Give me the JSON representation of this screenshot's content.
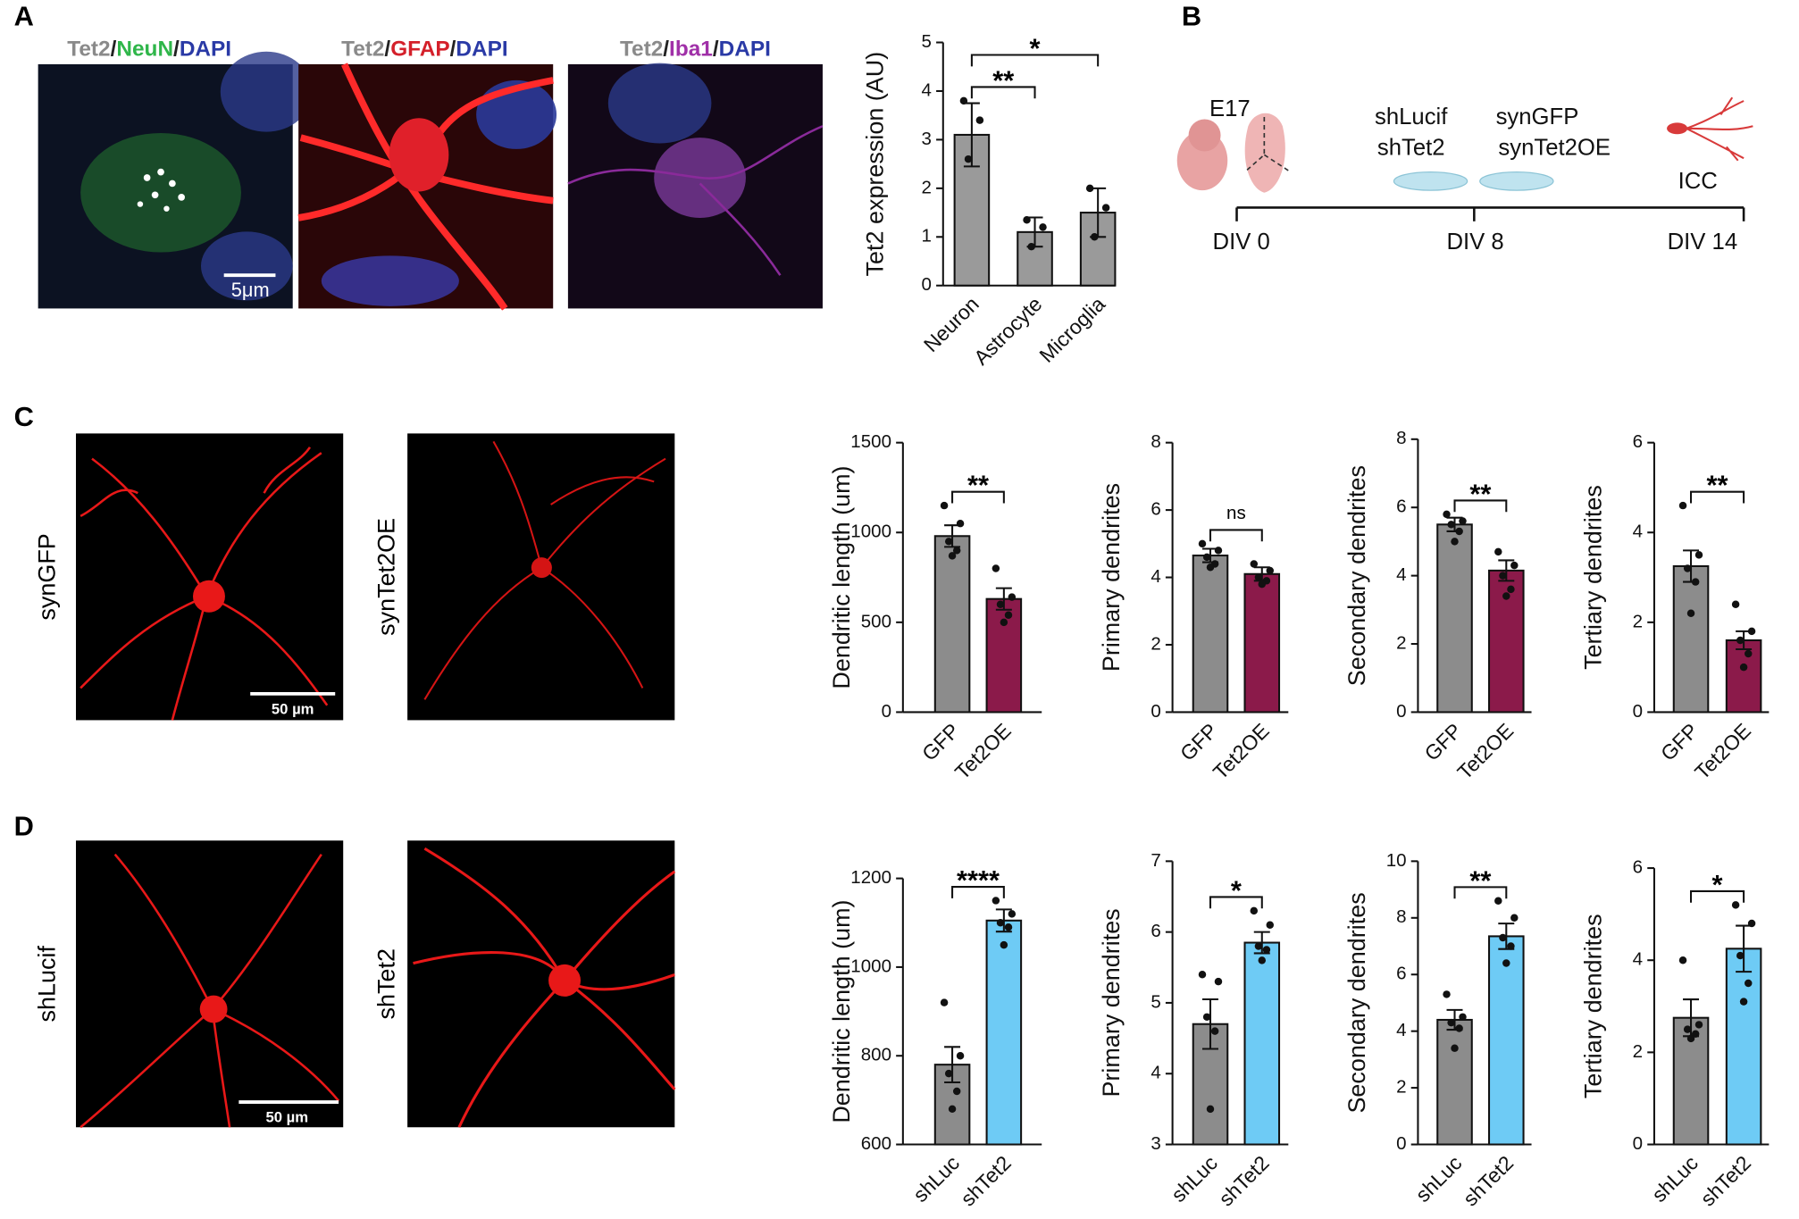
{
  "panels": [
    "A",
    "B",
    "C",
    "D"
  ],
  "separator": "/",
  "images": [
    {
      "stains": [
        "Tet2",
        "NeuN",
        "DAPI"
      ],
      "scale_bar": "5μm"
    },
    {
      "stains": [
        "Tet2",
        "GFAP",
        "DAPI"
      ]
    },
    {
      "stains": [
        "Tet2",
        "Iba1",
        "DAPI"
      ]
    },
    {
      "sample": "synGFP",
      "scale_bar": "50 µm"
    },
    {
      "sample": "synTet2OE"
    },
    {
      "sample": "shLucif",
      "scale_bar": "50 µm"
    },
    {
      "sample": "shTet2"
    }
  ],
  "diagram": {
    "stage": "E17",
    "knockdown": [
      "shLucif",
      "shTet2"
    ],
    "overexpression": [
      "synGFP",
      "synTet2OE"
    ],
    "readout": "ICC",
    "timepoints": [
      "DIV 0",
      "DIV 8",
      "DIV 14"
    ]
  },
  "chart_data": [
    {
      "type": "bar",
      "ylabel": "Tet2 expression (AU)",
      "categories": [
        "Neuron",
        "Astrocyte",
        "Microglia"
      ],
      "values": [
        3.1,
        1.1,
        1.5
      ],
      "errors": [
        0.65,
        0.3,
        0.5
      ],
      "points": [
        [
          3.8,
          3.4,
          2.6
        ],
        [
          1.35,
          1.2,
          0.8
        ],
        [
          2.0,
          1.6,
          1.0
        ]
      ],
      "colors": [
        "#9a9a9a",
        "#9a9a9a",
        "#9a9a9a"
      ],
      "ylim": [
        0,
        5
      ],
      "yticks": [
        0,
        1,
        2,
        3,
        4,
        5
      ],
      "annotations": [
        {
          "label": "**",
          "categories": [
            "Neuron",
            "Astrocyte"
          ]
        },
        {
          "label": "*",
          "categories": [
            "Neuron",
            "Microglia"
          ]
        }
      ]
    },
    {
      "type": "bar",
      "ylabel": "Dendritic length (um)",
      "categories": [
        "GFP",
        "Tet2OE"
      ],
      "values": [
        980,
        630
      ],
      "errors": [
        60,
        60
      ],
      "points": [
        [
          1150,
          1050,
          950,
          900,
          870
        ],
        [
          800,
          640,
          600,
          540,
          500
        ]
      ],
      "colors": [
        "#8c8c8c",
        "#8b1a4a"
      ],
      "ylim": [
        0,
        1500
      ],
      "yticks": [
        0,
        500,
        1000,
        1500
      ],
      "annotations": [
        {
          "label": "**",
          "categories": [
            "GFP",
            "Tet2OE"
          ]
        }
      ]
    },
    {
      "type": "bar",
      "ylabel": "Primary dendrites",
      "categories": [
        "GFP",
        "Tet2OE"
      ],
      "values": [
        4.65,
        4.1
      ],
      "errors": [
        0.2,
        0.2
      ],
      "points": [
        [
          5.0,
          4.8,
          4.6,
          4.4,
          4.3
        ],
        [
          4.4,
          4.2,
          4.0,
          3.9,
          3.8
        ]
      ],
      "colors": [
        "#8c8c8c",
        "#8b1a4a"
      ],
      "ylim": [
        0,
        8
      ],
      "yticks": [
        0,
        2,
        4,
        6,
        8
      ],
      "annotations": [
        {
          "label": "ns",
          "categories": [
            "GFP",
            "Tet2OE"
          ]
        }
      ]
    },
    {
      "type": "bar",
      "ylabel": "Secondary dendrites",
      "categories": [
        "GFP",
        "Tet2OE"
      ],
      "values": [
        5.5,
        4.15
      ],
      "errors": [
        0.2,
        0.3
      ],
      "points": [
        [
          5.8,
          5.6,
          5.5,
          5.3,
          5.0
        ],
        [
          4.7,
          4.3,
          4.0,
          3.6,
          3.4
        ]
      ],
      "colors": [
        "#8c8c8c",
        "#8b1a4a"
      ],
      "ylim": [
        0,
        8
      ],
      "yticks": [
        0,
        2,
        4,
        6,
        8
      ],
      "annotations": [
        {
          "label": "**",
          "categories": [
            "GFP",
            "Tet2OE"
          ]
        }
      ]
    },
    {
      "type": "bar",
      "ylabel": "Tertiary dendrites",
      "categories": [
        "GFP",
        "Tet2OE"
      ],
      "values": [
        3.25,
        1.6
      ],
      "errors": [
        0.35,
        0.2
      ],
      "points": [
        [
          4.6,
          3.5,
          3.2,
          2.9,
          2.2
        ],
        [
          2.4,
          1.8,
          1.6,
          1.3,
          1.0
        ]
      ],
      "colors": [
        "#8c8c8c",
        "#8b1a4a"
      ],
      "ylim": [
        0,
        6
      ],
      "yticks": [
        0,
        2,
        4,
        6
      ],
      "annotations": [
        {
          "label": "**",
          "categories": [
            "GFP",
            "Tet2OE"
          ]
        }
      ]
    },
    {
      "type": "bar",
      "ylabel": "Dendritic length (um)",
      "categories": [
        "shLuc",
        "shTet2"
      ],
      "values": [
        780,
        1105
      ],
      "errors": [
        40,
        25
      ],
      "points": [
        [
          920,
          800,
          760,
          720,
          680
        ],
        [
          1150,
          1120,
          1100,
          1090,
          1050
        ]
      ],
      "colors": [
        "#8c8c8c",
        "#6ecbf5"
      ],
      "ylim": [
        600,
        1200
      ],
      "yticks": [
        600,
        800,
        1000,
        1200
      ],
      "annotations": [
        {
          "label": "****",
          "categories": [
            "shLuc",
            "shTet2"
          ]
        }
      ]
    },
    {
      "type": "bar",
      "ylabel": "Primary dendrites",
      "categories": [
        "shLuc",
        "shTet2"
      ],
      "values": [
        4.7,
        5.85
      ],
      "errors": [
        0.35,
        0.15
      ],
      "points": [
        [
          5.4,
          5.3,
          4.8,
          4.6,
          3.5
        ],
        [
          6.3,
          6.1,
          5.8,
          5.75,
          5.6
        ]
      ],
      "colors": [
        "#8c8c8c",
        "#6ecbf5"
      ],
      "ylim": [
        3,
        7
      ],
      "yticks": [
        3,
        4,
        5,
        6,
        7
      ],
      "annotations": [
        {
          "label": "*",
          "categories": [
            "shLuc",
            "shTet2"
          ]
        }
      ]
    },
    {
      "type": "bar",
      "ylabel": "Secondary dendrites",
      "categories": [
        "shLuc",
        "shTet2"
      ],
      "values": [
        4.4,
        7.35
      ],
      "errors": [
        0.35,
        0.45
      ],
      "points": [
        [
          5.3,
          4.5,
          4.3,
          4.1,
          3.4
        ],
        [
          8.6,
          8.0,
          7.3,
          7.0,
          6.4
        ]
      ],
      "colors": [
        "#8c8c8c",
        "#6ecbf5"
      ],
      "ylim": [
        0,
        10
      ],
      "yticks": [
        0,
        2,
        4,
        6,
        8,
        10
      ],
      "annotations": [
        {
          "label": "**",
          "categories": [
            "shLuc",
            "shTet2"
          ]
        }
      ]
    },
    {
      "type": "bar",
      "ylabel": "Tertiary dendrites",
      "categories": [
        "shLuc",
        "shTet2"
      ],
      "values": [
        2.75,
        4.25
      ],
      "errors": [
        0.4,
        0.5
      ],
      "points": [
        [
          4.0,
          2.6,
          2.5,
          2.4,
          2.3
        ],
        [
          5.2,
          4.8,
          4.1,
          3.5,
          3.1
        ]
      ],
      "colors": [
        "#8c8c8c",
        "#6ecbf5"
      ],
      "ylim": [
        0,
        6
      ],
      "yticks": [
        0,
        2,
        4,
        6
      ],
      "annotations": [
        {
          "label": "*",
          "categories": [
            "shLuc",
            "shTet2"
          ]
        }
      ]
    }
  ]
}
